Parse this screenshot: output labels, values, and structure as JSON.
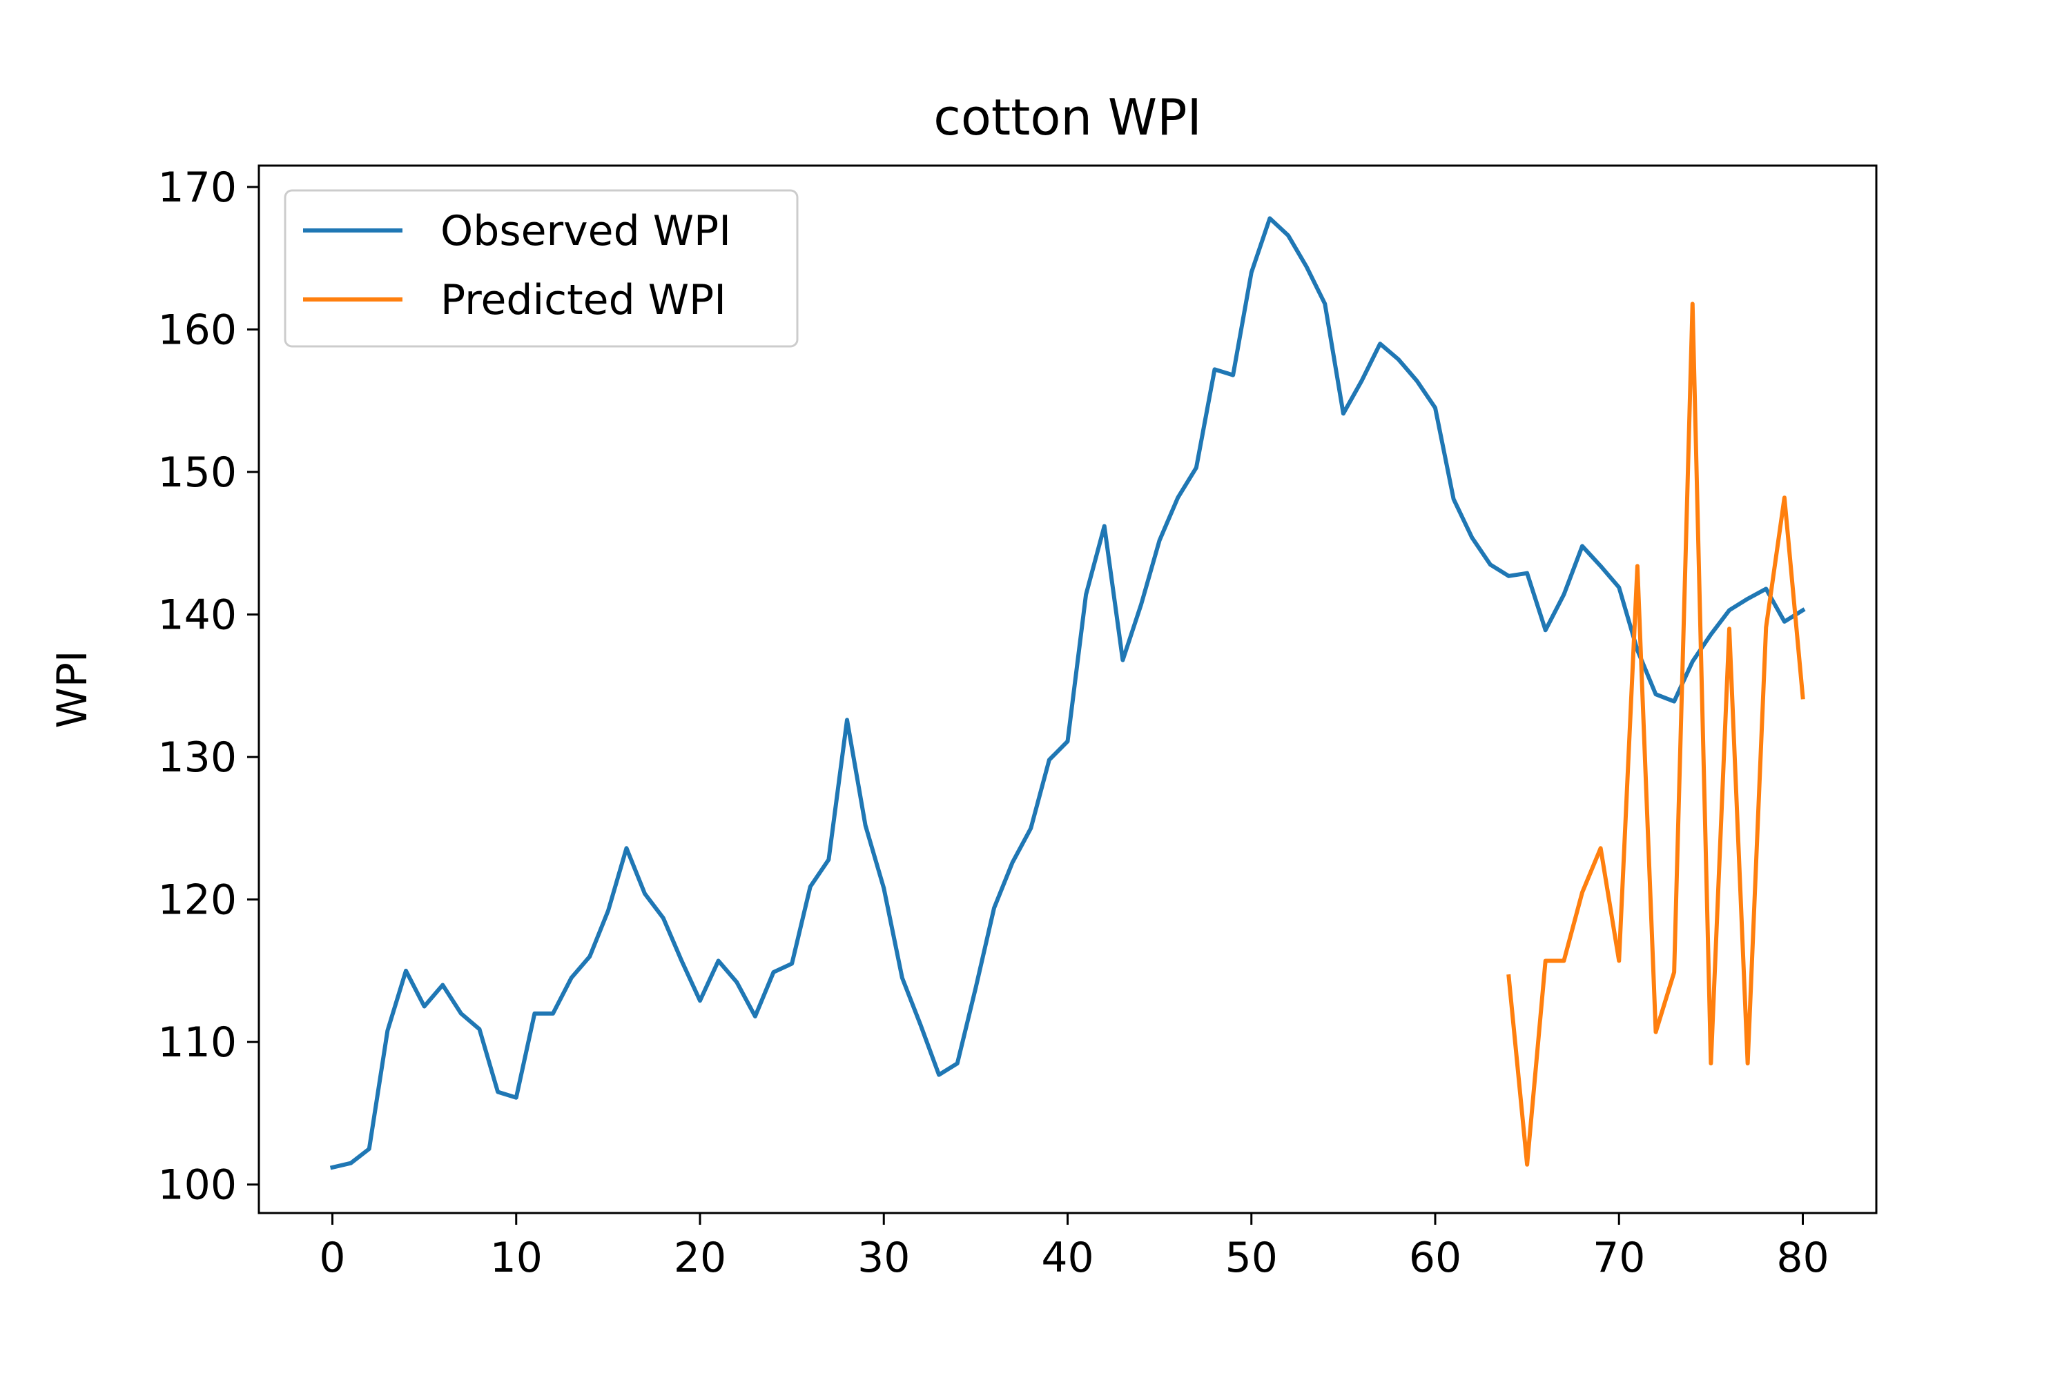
{
  "chart_data": {
    "type": "line",
    "title": "cotton WPI",
    "xlabel": "",
    "ylabel": "WPI",
    "xlim": [
      -4,
      84
    ],
    "ylim": [
      98,
      171.5
    ],
    "xticks": [
      0,
      10,
      20,
      30,
      40,
      50,
      60,
      70,
      80
    ],
    "yticks": [
      100,
      110,
      120,
      130,
      140,
      150,
      160,
      170
    ],
    "grid": false,
    "legend": "upper left",
    "series": [
      {
        "name": "Observed WPI",
        "color": "#1f77b4",
        "x": [
          0,
          1,
          2,
          3,
          4,
          5,
          6,
          7,
          8,
          9,
          10,
          11,
          12,
          13,
          14,
          15,
          16,
          17,
          18,
          19,
          20,
          21,
          22,
          23,
          24,
          25,
          26,
          27,
          28,
          29,
          30,
          31,
          32,
          33,
          34,
          35,
          36,
          37,
          38,
          39,
          40,
          41,
          42,
          43,
          44,
          45,
          46,
          47,
          48,
          49,
          50,
          51,
          52,
          53,
          54,
          55,
          56,
          57,
          58,
          59,
          60,
          61,
          62,
          63,
          64,
          65,
          66,
          67,
          68,
          69,
          70,
          71,
          72,
          73,
          74,
          75,
          76,
          77,
          78,
          79,
          80
        ],
        "y": [
          101.2,
          101.5,
          102.5,
          110.8,
          115.0,
          112.5,
          114.0,
          112.0,
          110.9,
          106.5,
          106.1,
          112.0,
          112.0,
          114.5,
          116.0,
          119.2,
          123.6,
          120.4,
          118.7,
          115.7,
          112.9,
          115.7,
          114.2,
          111.8,
          114.9,
          115.5,
          120.9,
          122.8,
          132.6,
          125.2,
          120.8,
          114.5,
          111.2,
          107.7,
          108.5,
          113.8,
          119.4,
          122.6,
          125.0,
          129.8,
          131.1,
          141.4,
          146.2,
          136.8,
          140.7,
          145.2,
          148.2,
          150.3,
          157.2,
          156.8,
          164.0,
          167.8,
          166.6,
          164.4,
          161.8,
          154.1,
          156.4,
          159.0,
          157.9,
          156.4,
          154.5,
          148.1,
          145.4,
          143.5,
          142.7,
          142.9,
          138.9,
          141.4,
          144.8,
          143.4,
          141.9,
          137.5,
          134.4,
          133.9,
          136.7,
          138.6,
          140.3,
          141.1,
          141.8,
          139.5,
          140.3
        ]
      },
      {
        "name": "Predicted WPI",
        "color": "#ff7f0e",
        "x": [
          64,
          65,
          66,
          67,
          68,
          69,
          70,
          71,
          72,
          73,
          74,
          75,
          76,
          77,
          78,
          79,
          80
        ],
        "y": [
          114.6,
          101.4,
          115.7,
          115.7,
          120.5,
          123.6,
          115.7,
          143.4,
          110.7,
          114.9,
          161.8,
          108.5,
          139.0,
          108.5,
          139.1,
          148.2,
          134.2
        ]
      }
    ]
  }
}
